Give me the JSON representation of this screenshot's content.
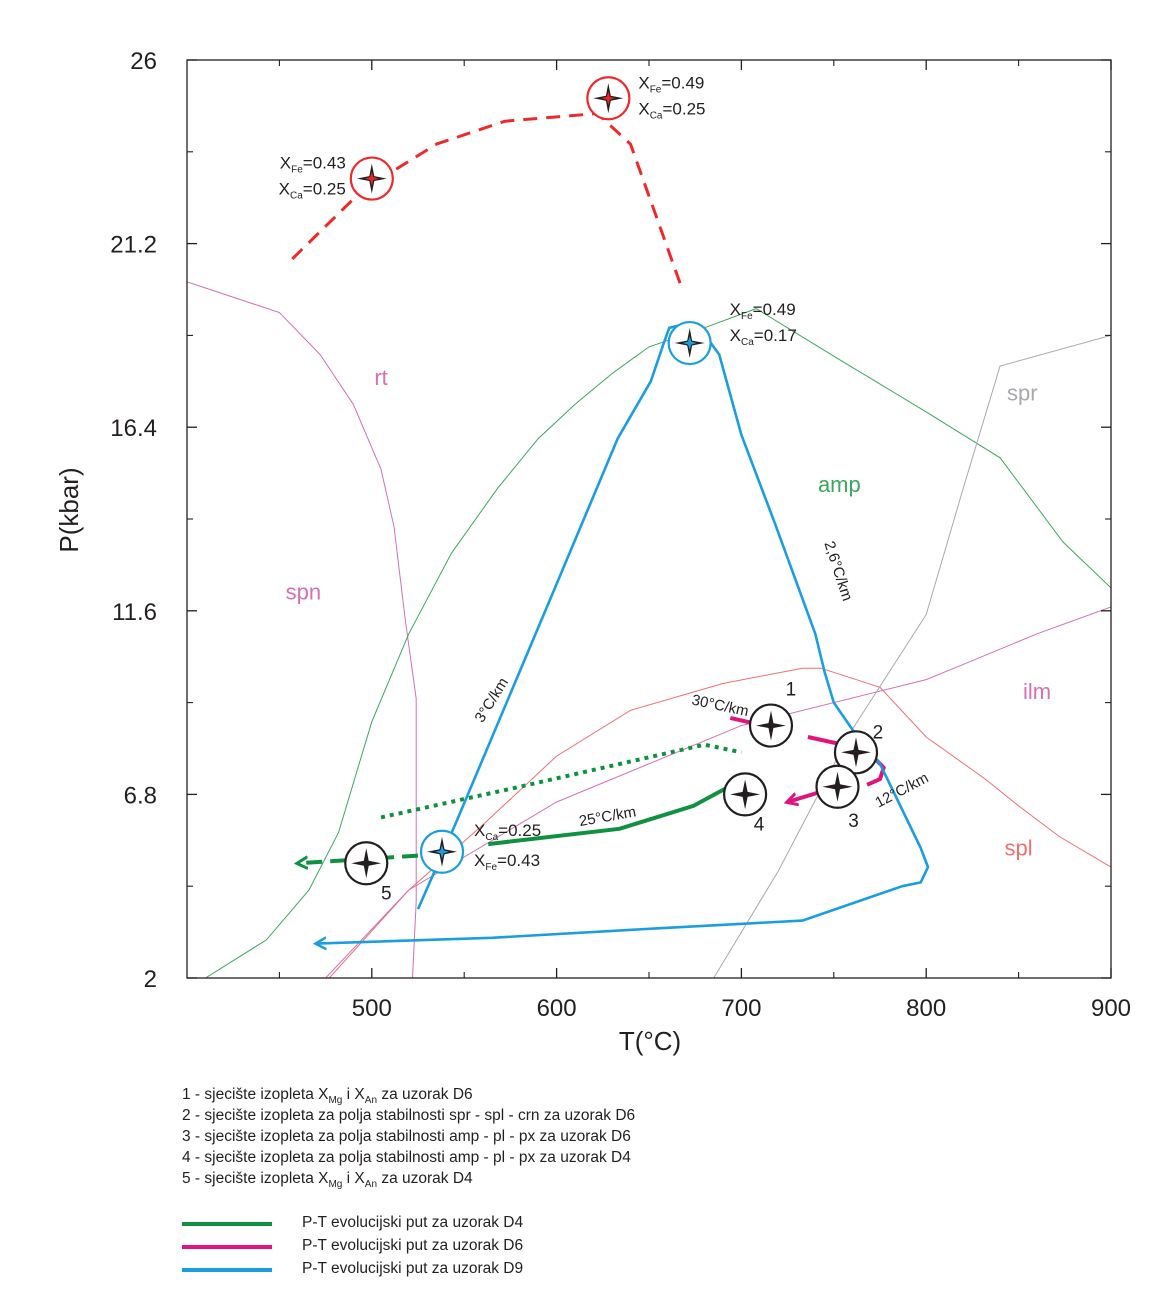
{
  "chart_data": {
    "type": "line",
    "xlabel": "T(°C)",
    "ylabel": "P(kbar)",
    "xlim": [
      400,
      900
    ],
    "ylim": [
      2,
      26
    ],
    "x_ticks": [
      "500",
      "600",
      "700",
      "800",
      "900"
    ],
    "x_tick_values": [
      500,
      600,
      700,
      800,
      900
    ],
    "y_ticks": [
      "26",
      "21.2",
      "16.4",
      "11.6",
      "6.8",
      "2"
    ],
    "y_tick_values": [
      26,
      21.2,
      16.4,
      11.6,
      6.8,
      2
    ],
    "grid": false,
    "field_labels": [
      {
        "text": "rt",
        "x": 505,
        "y": 17.5,
        "color": "#d56fb6"
      },
      {
        "text": "spn",
        "x": 463,
        "y": 11.9,
        "color": "#d56fb6"
      },
      {
        "text": "amp",
        "x": 753,
        "y": 14.7,
        "color": "#3aa85b"
      },
      {
        "text": "spr",
        "x": 852,
        "y": 17.1,
        "color": "#a7a9ac"
      },
      {
        "text": "ilm",
        "x": 860,
        "y": 9.3,
        "color": "#d56fb6"
      },
      {
        "text": "spl",
        "x": 850,
        "y": 5.2,
        "color": "#ef6f6f"
      }
    ],
    "field_boundaries": [
      {
        "name": "rt-spn",
        "color": "#d56fb6",
        "points": [
          [
            400,
            20.2
          ],
          [
            450,
            19.4
          ],
          [
            472,
            18.3
          ],
          [
            490,
            17.0
          ],
          [
            505,
            15.3
          ],
          [
            512,
            13.8
          ],
          [
            518,
            11.4
          ],
          [
            524,
            9.3
          ],
          [
            524,
            4.0
          ],
          [
            522,
            2.0
          ]
        ]
      },
      {
        "name": "amp",
        "color": "#3aa85b",
        "points": [
          [
            410,
            2.0
          ],
          [
            443,
            3.0
          ],
          [
            466,
            4.3
          ],
          [
            482,
            5.8
          ],
          [
            500,
            8.7
          ],
          [
            520,
            11.0
          ],
          [
            543,
            13.1
          ],
          [
            568,
            14.8
          ],
          [
            590,
            16.1
          ],
          [
            610,
            17.0
          ],
          [
            630,
            17.8
          ],
          [
            650,
            18.5
          ],
          [
            680,
            19.0
          ],
          [
            708,
            19.5
          ],
          [
            752,
            18.2
          ],
          [
            800,
            16.8
          ],
          [
            840,
            15.6
          ],
          [
            874,
            13.4
          ],
          [
            900,
            12.2
          ]
        ]
      },
      {
        "name": "spl",
        "color": "#ef6f6f",
        "points": [
          [
            477,
            2.0
          ],
          [
            520,
            4.3
          ],
          [
            560,
            6.0
          ],
          [
            600,
            7.8
          ],
          [
            640,
            9.0
          ],
          [
            690,
            9.7
          ],
          [
            733,
            10.1
          ],
          [
            743,
            10.1
          ],
          [
            775,
            9.6
          ],
          [
            800,
            8.3
          ],
          [
            832,
            7.2
          ],
          [
            850,
            6.5
          ],
          [
            872,
            5.7
          ],
          [
            900,
            4.9
          ]
        ]
      },
      {
        "name": "ilm",
        "color": "#d56fb6",
        "points": [
          [
            475,
            2.0
          ],
          [
            520,
            4.3
          ],
          [
            600,
            6.6
          ],
          [
            700,
            8.6
          ],
          [
            800,
            9.8
          ],
          [
            820,
            10.2
          ],
          [
            860,
            11.0
          ],
          [
            900,
            11.7
          ]
        ]
      },
      {
        "name": "spr",
        "color": "#a7a9ac",
        "points": [
          [
            685,
            2.0
          ],
          [
            720,
            4.8
          ],
          [
            760,
            8.5
          ],
          [
            800,
            11.5
          ],
          [
            820,
            14.8
          ],
          [
            840,
            18.0
          ],
          [
            900,
            18.8
          ]
        ]
      }
    ],
    "series": [
      {
        "name": "P-T evolucijski put za uzorak D4",
        "color": "#0f9140",
        "style": "solid",
        "points": [
          [
            563,
            5.5
          ],
          [
            634,
            5.9
          ],
          [
            674,
            6.5
          ],
          [
            697,
            7.1
          ]
        ],
        "arrow_end": false
      },
      {
        "name": "P-T evolucijski put za uzorak D4",
        "color": "#0f9140",
        "style": "dashed",
        "points": [
          [
            525,
            5.2
          ],
          [
            460,
            5.0
          ]
        ],
        "arrow_end": true
      },
      {
        "name": "P-T evolucijski put za uzorak D4",
        "color": "#0f9140",
        "style": "dotted",
        "points": [
          [
            505,
            6.2
          ],
          [
            580,
            7.0
          ],
          [
            680,
            8.1
          ],
          [
            700,
            7.9
          ]
        ],
        "arrow_end": false
      },
      {
        "name": "P-T evolucijski put za uzorak D6",
        "color": "#e0147a",
        "style": "solid",
        "points": [
          [
            694,
            8.8
          ],
          [
            712,
            8.6
          ]
        ],
        "arrow_end": false
      },
      {
        "name": "P-T evolucijski put za uzorak D6",
        "color": "#e0147a",
        "style": "solid",
        "points": [
          [
            736,
            8.3
          ],
          [
            755,
            8.1
          ]
        ],
        "arrow_end": false
      },
      {
        "name": "P-T evolucijski put za uzorak D6",
        "color": "#e0147a",
        "style": "solid",
        "points": [
          [
            773,
            7.7
          ],
          [
            777,
            7.5
          ],
          [
            775,
            7.2
          ],
          [
            768,
            7.05
          ]
        ],
        "arrow_end": false
      },
      {
        "name": "P-T evolucijski put za uzorak D6",
        "color": "#e0147a",
        "style": "solid",
        "points": [
          [
            745,
            6.9
          ],
          [
            725,
            6.6
          ]
        ],
        "arrow_end": true
      },
      {
        "name": "P-T evolucijski put za uzorak D9",
        "color": "#1b9de2",
        "style": "solid",
        "points": [
          [
            525,
            3.8
          ],
          [
            545,
            6.0
          ],
          [
            600,
            12.3
          ],
          [
            633,
            16.1
          ],
          [
            651,
            17.6
          ],
          [
            658,
            18.6
          ],
          [
            661,
            19.0
          ],
          [
            670,
            19.1
          ],
          [
            679,
            18.9
          ],
          [
            688,
            18.3
          ],
          [
            700,
            16.2
          ],
          [
            718,
            13.9
          ],
          [
            740,
            11.0
          ],
          [
            745,
            10.0
          ],
          [
            750,
            9.2
          ],
          [
            760,
            8.5
          ],
          [
            775,
            7.6
          ],
          [
            797,
            5.4
          ],
          [
            801,
            4.9
          ],
          [
            797,
            4.5
          ],
          [
            787,
            4.4
          ],
          [
            733,
            3.5
          ],
          [
            655,
            3.3
          ],
          [
            565,
            3.05
          ],
          [
            470,
            2.9
          ]
        ],
        "arrow_end": true
      },
      {
        "name": "",
        "color": "#ef2929",
        "style": "dashed",
        "points": [
          [
            457,
            20.8
          ],
          [
            495,
            22.6
          ],
          [
            535,
            23.8
          ],
          [
            572,
            24.4
          ],
          [
            622,
            24.6
          ],
          [
            640,
            23.8
          ],
          [
            668,
            20.0
          ]
        ],
        "arrow_end": false
      }
    ],
    "markers": [
      {
        "x": 500,
        "y": 22.9,
        "ring": "#ef2929",
        "fill": "#e32726",
        "label_lines": [
          "X_Fe=0.43",
          "X_Ca=0.25"
        ],
        "label_pos": "left"
      },
      {
        "x": 628,
        "y": 25.0,
        "ring": "#ef2929",
        "fill": "#e32726",
        "label_lines": [
          "X_Fe=0.49",
          "X_Ca=0.25"
        ],
        "label_pos": "right"
      },
      {
        "x": 672,
        "y": 18.6,
        "ring": "#1b9de2",
        "fill": "#1b9de2",
        "label_lines": [
          "X_Fe=0.49",
          "X_Ca=0.17"
        ],
        "label_pos": "right"
      },
      {
        "x": 538,
        "y": 5.3,
        "ring": "#1b9de2",
        "fill": "#1b9de2",
        "label_lines": [
          "X_Ca=0.25",
          "X_Fe=0.43"
        ],
        "label_pos": "right"
      },
      {
        "x": 716,
        "y": 8.6,
        "ring": "#231f20",
        "fill": "#231f20",
        "number": "1"
      },
      {
        "x": 762,
        "y": 7.9,
        "ring": "#231f20",
        "fill": "#231f20",
        "number": "2"
      },
      {
        "x": 752,
        "y": 7.0,
        "ring": "#231f20",
        "fill": "#231f20",
        "number": "3"
      },
      {
        "x": 702,
        "y": 6.8,
        "ring": "#231f20",
        "fill": "#231f20",
        "number": "4"
      },
      {
        "x": 497,
        "y": 5.0,
        "ring": "#231f20",
        "fill": "#231f20",
        "number": "5"
      }
    ],
    "gradient_labels": [
      {
        "text": "2,6°C/km",
        "x": 750,
        "y": 12.6,
        "rotate": 72
      },
      {
        "text": "3°C/km",
        "x": 567,
        "y": 9.2,
        "rotate": -58
      },
      {
        "text": "30°C/km",
        "x": 688,
        "y": 9.0,
        "rotate": 12
      },
      {
        "text": "12°C/km",
        "x": 788,
        "y": 6.8,
        "rotate": -28
      },
      {
        "text": "25°C/km",
        "x": 628,
        "y": 6.1,
        "rotate": -10
      }
    ]
  },
  "legend_items": [
    {
      "number": "1 - sjecište izopleta X",
      "sub1": "Mg",
      "mid": " i X",
      "sub2": "An",
      "tail": " za uzorak D6"
    },
    {
      "text": "2 - sjecište izopleta za polja stabilnosti spr - spl - crn za uzorak D6"
    },
    {
      "text": "3 - sjecište izopleta za polja stabilnosti amp - pl - px za uzorak D6"
    },
    {
      "text": "4 - sjecište izopleta za polja stabilnosti amp - pl - px za uzorak D4"
    },
    {
      "number": "5 - sjecište izopleta X",
      "sub1": "Mg",
      "mid": " i X",
      "sub2": "An",
      "tail": " za uzorak D4"
    }
  ],
  "key_items": [
    {
      "label": "P-T evolucijski put za uzorak D4",
      "color": "#0f9140"
    },
    {
      "label": "P-T evolucijski put za uzorak D6",
      "color": "#e0147a"
    },
    {
      "label": "P-T evolucijski put za uzorak D9",
      "color": "#1b9de2"
    }
  ]
}
